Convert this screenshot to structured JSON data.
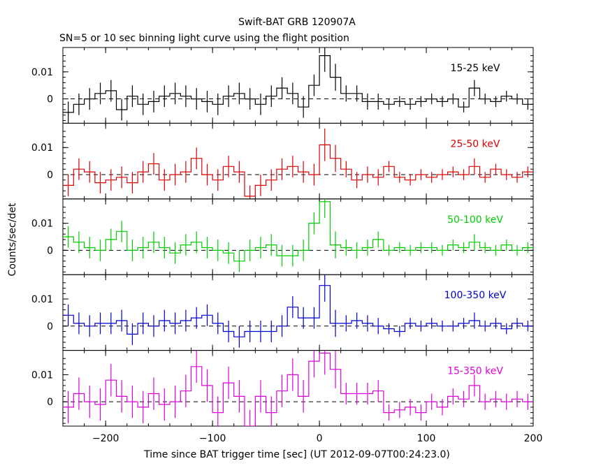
{
  "chart_data": {
    "type": "line",
    "title": "Swift-BAT GRB 120907A",
    "subtitle": "SN=5 or 10 sec binning light curve using the flight position",
    "xlabel": "Time since BAT trigger time [sec] (UT 2012-09-07T00:24:23.0)",
    "ylabel": "Counts/sec/det",
    "xlim": [
      -240,
      200
    ],
    "x_ticks": [
      -200,
      -100,
      0,
      100,
      200
    ],
    "y_ticks": [
      0,
      0.01
    ],
    "y_tick_labels": [
      "0",
      "0.01"
    ],
    "zero_line": "dashed",
    "bin_edges": [
      -240,
      -230,
      -220,
      -210,
      -200,
      -190,
      -180,
      -170,
      -160,
      -150,
      -140,
      -130,
      -120,
      -110,
      -100,
      -90,
      -80,
      -70,
      -60,
      -50,
      -40,
      -30,
      -20,
      -10,
      0,
      10,
      20,
      30,
      40,
      50,
      60,
      70,
      80,
      90,
      100,
      110,
      120,
      130,
      140,
      150,
      160,
      170,
      180,
      190,
      200
    ],
    "panels": [
      {
        "band": "15-25 keV",
        "color": "#000000",
        "ylim": [
          -0.009,
          0.019
        ],
        "values": [
          -0.005,
          -0.002,
          0.0,
          0.002,
          0.003,
          -0.004,
          0.001,
          -0.002,
          -0.001,
          0.001,
          0.002,
          0.001,
          0.0,
          -0.001,
          -0.002,
          0.001,
          0.002,
          0.0,
          -0.002,
          0.001,
          0.004,
          0.002,
          -0.003,
          0.005,
          0.016,
          0.008,
          0.002,
          0.002,
          -0.001,
          -0.001,
          -0.002,
          -0.001,
          -0.002,
          -0.001,
          0.0,
          -0.001,
          0.0,
          -0.003,
          0.004,
          0.0,
          -0.001,
          0.001,
          0.0,
          -0.002
        ],
        "errors": [
          0.004,
          0.004,
          0.004,
          0.004,
          0.004,
          0.004,
          0.004,
          0.004,
          0.004,
          0.004,
          0.004,
          0.004,
          0.004,
          0.004,
          0.004,
          0.004,
          0.004,
          0.004,
          0.004,
          0.004,
          0.004,
          0.004,
          0.004,
          0.004,
          0.006,
          0.005,
          0.003,
          0.003,
          0.003,
          0.003,
          0.002,
          0.002,
          0.002,
          0.002,
          0.002,
          0.002,
          0.002,
          0.002,
          0.003,
          0.002,
          0.002,
          0.002,
          0.002,
          0.002
        ]
      },
      {
        "band": "25-50 keV",
        "color": "#dd0000",
        "ylim": [
          -0.009,
          0.019
        ],
        "values": [
          -0.004,
          0.002,
          0.001,
          -0.003,
          -0.002,
          -0.001,
          -0.003,
          0.001,
          0.004,
          -0.002,
          0.0,
          0.001,
          0.006,
          0.0,
          -0.002,
          0.003,
          0.001,
          -0.008,
          -0.004,
          -0.002,
          0.002,
          0.003,
          0.001,
          0.0,
          0.011,
          0.006,
          0.002,
          -0.002,
          0.0,
          -0.001,
          0.003,
          -0.001,
          -0.002,
          0.0,
          -0.001,
          0.0,
          0.001,
          0.0,
          0.003,
          -0.001,
          0.002,
          0.0,
          -0.001,
          0.001
        ],
        "errors": [
          0.004,
          0.004,
          0.004,
          0.004,
          0.004,
          0.004,
          0.004,
          0.004,
          0.004,
          0.004,
          0.004,
          0.004,
          0.004,
          0.004,
          0.004,
          0.004,
          0.004,
          0.004,
          0.004,
          0.004,
          0.004,
          0.004,
          0.004,
          0.004,
          0.006,
          0.005,
          0.003,
          0.003,
          0.003,
          0.003,
          0.002,
          0.002,
          0.002,
          0.002,
          0.002,
          0.002,
          0.002,
          0.002,
          0.003,
          0.002,
          0.002,
          0.002,
          0.002,
          0.002
        ]
      },
      {
        "band": "50-100 keV",
        "color": "#00cc00",
        "ylim": [
          -0.009,
          0.019
        ],
        "values": [
          0.005,
          0.003,
          0.001,
          0.0,
          0.004,
          0.007,
          0.0,
          0.001,
          0.003,
          0.001,
          -0.001,
          0.002,
          0.003,
          0.001,
          0.0,
          -0.001,
          -0.004,
          0.0,
          0.001,
          0.002,
          -0.002,
          -0.002,
          0.0,
          0.01,
          0.018,
          0.002,
          0.001,
          0.0,
          0.001,
          0.004,
          0.0,
          0.001,
          0.0,
          0.001,
          0.001,
          0.0,
          0.002,
          0.001,
          0.003,
          0.001,
          0.0,
          0.002,
          0.0,
          0.001
        ],
        "errors": [
          0.004,
          0.004,
          0.004,
          0.004,
          0.004,
          0.004,
          0.004,
          0.004,
          0.004,
          0.004,
          0.004,
          0.004,
          0.004,
          0.004,
          0.004,
          0.004,
          0.004,
          0.004,
          0.004,
          0.004,
          0.004,
          0.004,
          0.004,
          0.004,
          0.006,
          0.005,
          0.003,
          0.003,
          0.003,
          0.003,
          0.002,
          0.002,
          0.002,
          0.002,
          0.002,
          0.002,
          0.002,
          0.002,
          0.003,
          0.002,
          0.002,
          0.002,
          0.002,
          0.002
        ]
      },
      {
        "band": "100-350 keV",
        "color": "#0000cc",
        "ylim": [
          -0.009,
          0.019
        ],
        "values": [
          0.004,
          0.001,
          0.0,
          0.001,
          0.001,
          0.002,
          -0.003,
          0.001,
          0.0,
          0.002,
          0.001,
          0.002,
          0.003,
          0.004,
          0.001,
          -0.002,
          -0.004,
          -0.002,
          -0.002,
          -0.002,
          0.0,
          0.007,
          0.003,
          0.003,
          0.015,
          0.001,
          0.001,
          0.002,
          0.001,
          0.0,
          -0.001,
          -0.002,
          0.001,
          0.0,
          0.001,
          0.0,
          0.0,
          0.001,
          0.002,
          0.0,
          0.001,
          -0.001,
          0.001,
          0.0
        ],
        "errors": [
          0.004,
          0.004,
          0.004,
          0.004,
          0.004,
          0.004,
          0.004,
          0.004,
          0.004,
          0.004,
          0.004,
          0.004,
          0.004,
          0.004,
          0.004,
          0.004,
          0.004,
          0.004,
          0.004,
          0.004,
          0.004,
          0.004,
          0.004,
          0.004,
          0.006,
          0.005,
          0.003,
          0.003,
          0.003,
          0.003,
          0.002,
          0.002,
          0.002,
          0.002,
          0.002,
          0.002,
          0.002,
          0.002,
          0.003,
          0.002,
          0.002,
          0.002,
          0.002,
          0.002
        ]
      },
      {
        "band": "15-350 keV",
        "color": "#dd00dd",
        "ylim": [
          -0.009,
          0.019
        ],
        "values": [
          -0.002,
          0.003,
          0.0,
          -0.001,
          0.008,
          0.002,
          0.0,
          -0.002,
          0.003,
          -0.001,
          0.0,
          0.004,
          0.013,
          0.006,
          -0.004,
          0.007,
          0.002,
          -0.009,
          0.002,
          -0.004,
          0.004,
          0.01,
          0.002,
          0.015,
          0.018,
          0.012,
          0.003,
          0.003,
          0.003,
          0.004,
          -0.004,
          -0.003,
          -0.002,
          -0.004,
          0.0,
          -0.002,
          0.002,
          0.001,
          0.006,
          0.0,
          0.001,
          0.0,
          0.001,
          0.0
        ],
        "errors": [
          0.006,
          0.006,
          0.006,
          0.006,
          0.006,
          0.006,
          0.006,
          0.006,
          0.006,
          0.006,
          0.006,
          0.006,
          0.006,
          0.006,
          0.006,
          0.006,
          0.006,
          0.006,
          0.006,
          0.006,
          0.006,
          0.006,
          0.006,
          0.006,
          0.008,
          0.007,
          0.004,
          0.004,
          0.004,
          0.004,
          0.003,
          0.003,
          0.003,
          0.003,
          0.003,
          0.003,
          0.003,
          0.003,
          0.004,
          0.003,
          0.003,
          0.003,
          0.003,
          0.003
        ]
      }
    ]
  }
}
